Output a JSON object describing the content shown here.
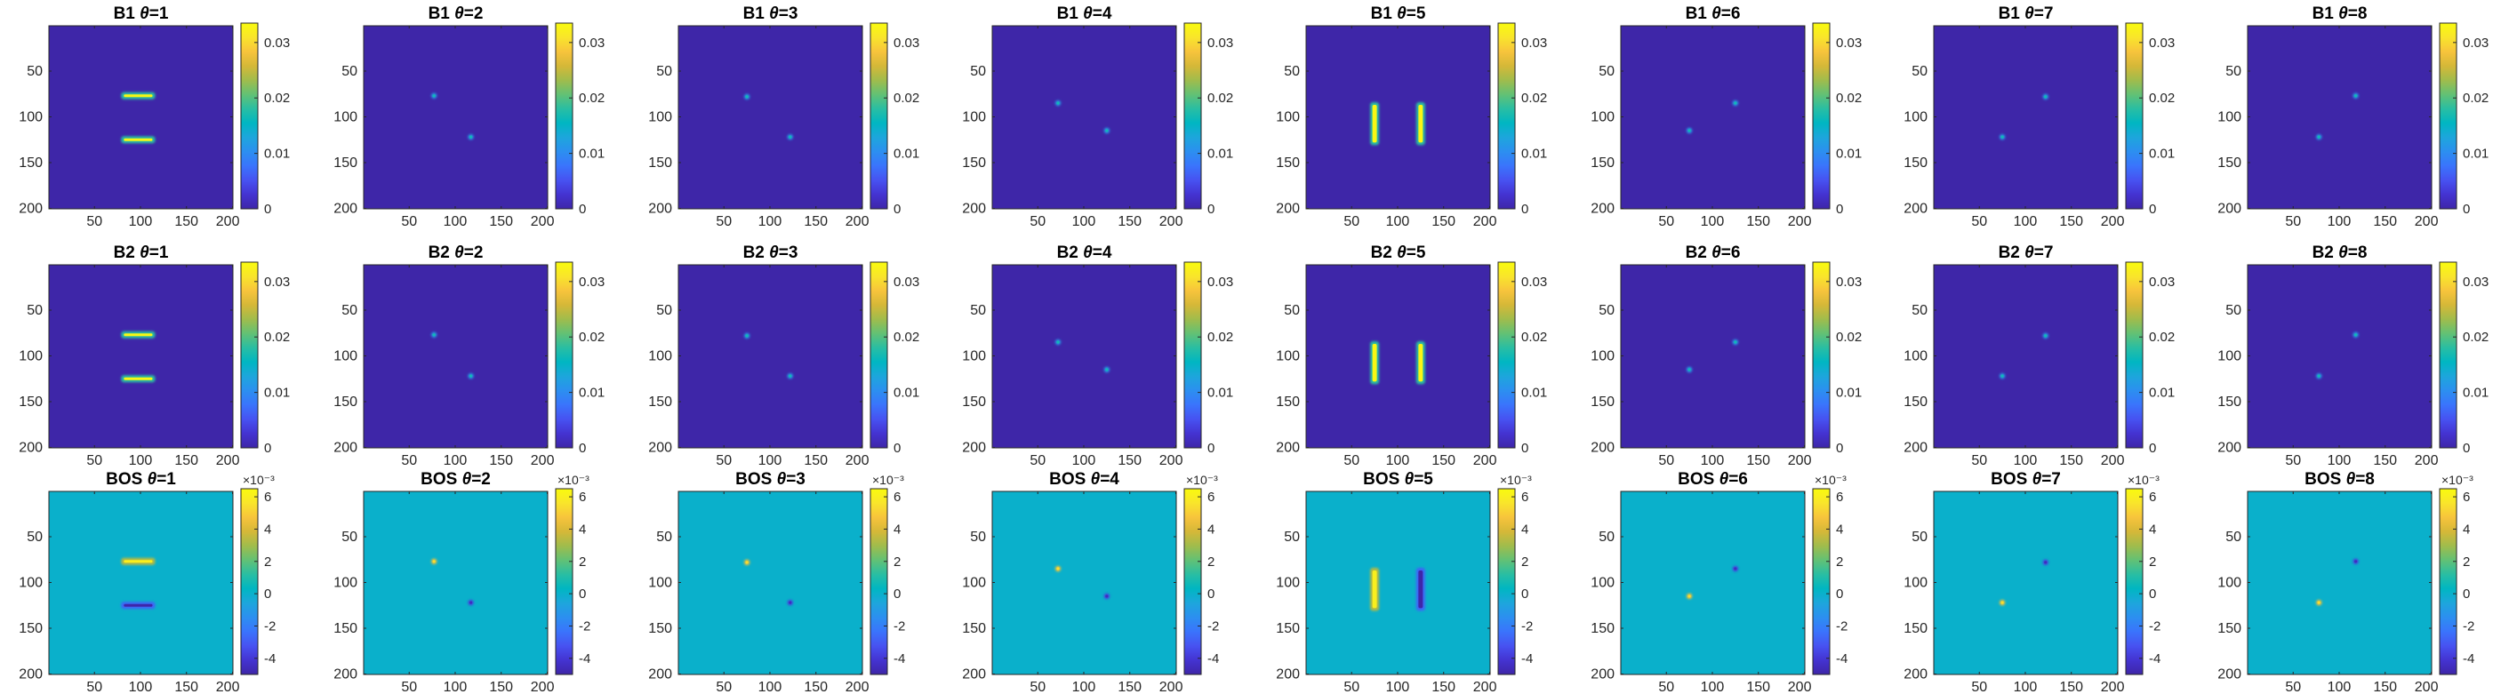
{
  "figure": {
    "colors": {
      "parula": [
        "#3E26A8",
        "#4433D1",
        "#4752F1",
        "#3A74FC",
        "#2C8FF0",
        "#1DA6DC",
        "#00B6C2",
        "#29BEA3",
        "#62C175",
        "#A0BC4C",
        "#D5B838",
        "#F7C43C",
        "#F9E52B",
        "#F9FB0E"
      ],
      "bos_background": "#14BFB4",
      "b_background": "#3E26A8"
    },
    "rows": [
      {
        "key": "B1",
        "colorbar": {
          "ticks": [
            "0",
            "0.01",
            "0.02",
            "0.03"
          ],
          "tick_values": [
            0,
            0.01,
            0.02,
            0.03
          ],
          "range": [
            0,
            0.0335
          ],
          "exponent": ""
        },
        "panels": [
          {
            "title_prefix": "B1",
            "theta_symbol": "θ",
            "theta": "=1"
          },
          {
            "title_prefix": "B1",
            "theta_symbol": "θ",
            "theta": "=2"
          },
          {
            "title_prefix": "B1",
            "theta_symbol": "θ",
            "theta": "=3"
          },
          {
            "title_prefix": "B1",
            "theta_symbol": "θ",
            "theta": "=4"
          },
          {
            "title_prefix": "B1",
            "theta_symbol": "θ",
            "theta": "=5"
          },
          {
            "title_prefix": "B1",
            "theta_symbol": "θ",
            "theta": "=6"
          },
          {
            "title_prefix": "B1",
            "theta_symbol": "θ",
            "theta": "=7"
          },
          {
            "title_prefix": "B1",
            "theta_symbol": "θ",
            "theta": "=8"
          }
        ]
      },
      {
        "key": "B2",
        "colorbar": {
          "ticks": [
            "0",
            "0.01",
            "0.02",
            "0.03"
          ],
          "tick_values": [
            0,
            0.01,
            0.02,
            0.03
          ],
          "range": [
            0,
            0.0335
          ],
          "exponent": ""
        },
        "panels": [
          {
            "title_prefix": "B2",
            "theta_symbol": "θ",
            "theta": "=1"
          },
          {
            "title_prefix": "B2",
            "theta_symbol": "θ",
            "theta": "=2"
          },
          {
            "title_prefix": "B2",
            "theta_symbol": "θ",
            "theta": "=3"
          },
          {
            "title_prefix": "B2",
            "theta_symbol": "θ",
            "theta": "=4"
          },
          {
            "title_prefix": "B2",
            "theta_symbol": "θ",
            "theta": "=5"
          },
          {
            "title_prefix": "B2",
            "theta_symbol": "θ",
            "theta": "=6"
          },
          {
            "title_prefix": "B2",
            "theta_symbol": "θ",
            "theta": "=7"
          },
          {
            "title_prefix": "B2",
            "theta_symbol": "θ",
            "theta": "=8"
          }
        ]
      },
      {
        "key": "BOS",
        "colorbar": {
          "ticks": [
            "-4",
            "-2",
            "0",
            "2",
            "4",
            "6"
          ],
          "tick_values": [
            -4,
            -2,
            0,
            2,
            4,
            6
          ],
          "range": [
            -5,
            6.5
          ],
          "exponent": "×10⁻³"
        },
        "panels": [
          {
            "title_prefix": "BOS",
            "theta_symbol": "θ",
            "theta": "=1"
          },
          {
            "title_prefix": "BOS",
            "theta_symbol": "θ",
            "theta": "=2"
          },
          {
            "title_prefix": "BOS",
            "theta_symbol": "θ",
            "theta": "=3"
          },
          {
            "title_prefix": "BOS",
            "theta_symbol": "θ",
            "theta": "=4"
          },
          {
            "title_prefix": "BOS",
            "theta_symbol": "θ",
            "theta": "=5"
          },
          {
            "title_prefix": "BOS",
            "theta_symbol": "θ",
            "theta": "=6"
          },
          {
            "title_prefix": "BOS",
            "theta_symbol": "θ",
            "theta": "=7"
          },
          {
            "title_prefix": "BOS",
            "theta_symbol": "θ",
            "theta": "=8"
          }
        ]
      }
    ]
  },
  "chart_data": {
    "type": "heatmap",
    "layout": "3 rows x 8 columns of image panels, each with its own colorbar",
    "x_ticks": [
      "50",
      "100",
      "150",
      "200"
    ],
    "x_tick_values": [
      50,
      100,
      150,
      200
    ],
    "y_ticks": [
      "50",
      "100",
      "150",
      "200"
    ],
    "y_tick_values": [
      50,
      100,
      150,
      200
    ],
    "xlim": [
      0.5,
      200.5
    ],
    "ylim": [
      0.5,
      200.5
    ],
    "y_direction": "reverse",
    "colormap": "parula",
    "blobs_by_theta": {
      "1": [
        {
          "kind": "hbar",
          "x": [
            80,
            115
          ],
          "y": 77,
          "sign": 1
        },
        {
          "kind": "hbar",
          "x": [
            80,
            115
          ],
          "y": 125,
          "sign": -1
        }
      ],
      "2": [
        {
          "kind": "dot",
          "x": 77,
          "y": 77,
          "sign": 1
        },
        {
          "kind": "dot",
          "x": 117,
          "y": 122,
          "sign": -1
        }
      ],
      "3": [
        {
          "kind": "dot",
          "x": 75,
          "y": 78,
          "sign": 1
        },
        {
          "kind": "dot",
          "x": 122,
          "y": 122,
          "sign": -1
        }
      ],
      "4": [
        {
          "kind": "dot",
          "x": 72,
          "y": 85,
          "sign": 1
        },
        {
          "kind": "dot",
          "x": 125,
          "y": 115,
          "sign": -1
        }
      ],
      "5": [
        {
          "kind": "vbar",
          "x": 75,
          "y": [
            85,
            130
          ],
          "sign": 1
        },
        {
          "kind": "vbar",
          "x": 125,
          "y": [
            85,
            130
          ],
          "sign": -1
        }
      ],
      "6": [
        {
          "kind": "dot",
          "x": 75,
          "y": 115,
          "sign": 1
        },
        {
          "kind": "dot",
          "x": 125,
          "y": 85,
          "sign": -1
        }
      ],
      "7": [
        {
          "kind": "dot",
          "x": 75,
          "y": 122,
          "sign": 1
        },
        {
          "kind": "dot",
          "x": 122,
          "y": 78,
          "sign": -1
        }
      ],
      "8": [
        {
          "kind": "dot",
          "x": 78,
          "y": 122,
          "sign": 1
        },
        {
          "kind": "dot",
          "x": 118,
          "y": 77,
          "sign": -1
        }
      ]
    },
    "row_values": {
      "B1": {
        "background": 0,
        "peak": 0.033,
        "theta5_peak": 0.033
      },
      "B2": {
        "background": 0,
        "peak": 0.033,
        "theta5_peak": 0.033
      },
      "BOS": {
        "background": 0,
        "positive_peak": 0.006,
        "negative_peak": -0.005,
        "unit_exponent": "x10^-3"
      }
    }
  }
}
